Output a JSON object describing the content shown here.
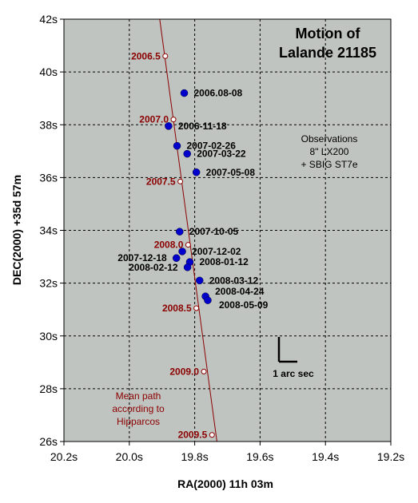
{
  "chart_data": {
    "type": "scatter",
    "title_lines": [
      "Motion of",
      "Lalande 21185"
    ],
    "xlabel": "RA(2000) 11h 03m",
    "ylabel": "DEC(2000) +35d 57m",
    "x_reversed": true,
    "xlim": [
      19.2,
      20.2
    ],
    "ylim": [
      26,
      42
    ],
    "x_ticks": [
      20.2,
      20.0,
      19.8,
      19.6,
      19.4,
      19.2
    ],
    "x_tick_labels": [
      "20.2s",
      "20.0s",
      "19.8s",
      "19.6s",
      "19.4s",
      "19.2s"
    ],
    "y_ticks": [
      26,
      28,
      30,
      32,
      34,
      36,
      38,
      40,
      42
    ],
    "y_tick_labels": [
      "26s",
      "28s",
      "30s",
      "32s",
      "34s",
      "36s",
      "38s",
      "40s",
      "42s"
    ],
    "grid": true,
    "background_color": "#c0c4c0",
    "observation_color": "#0000cc",
    "path_color": "#8b0000",
    "observations": {
      "name": "Observations",
      "points": [
        {
          "label": "2006.08-08",
          "x": 19.832,
          "y": 39.2
        },
        {
          "label": "2006-11-18",
          "x": 19.88,
          "y": 37.95
        },
        {
          "label": "2007-02-26",
          "x": 19.854,
          "y": 37.2
        },
        {
          "label": "2007-03-22",
          "x": 19.823,
          "y": 36.9
        },
        {
          "label": "2007-05-08",
          "x": 19.795,
          "y": 36.2
        },
        {
          "label": "2007-10-05",
          "x": 19.846,
          "y": 33.95
        },
        {
          "label": "2007-12-02",
          "x": 19.838,
          "y": 33.2
        },
        {
          "label": "2007-12-18",
          "x": 19.856,
          "y": 32.95
        },
        {
          "label": "2008-01-12",
          "x": 19.815,
          "y": 32.8
        },
        {
          "label": "2008-02-12",
          "x": 19.822,
          "y": 32.6
        },
        {
          "label": "2008-03-12",
          "x": 19.785,
          "y": 32.1
        },
        {
          "label": "2008-04-24",
          "x": 19.767,
          "y": 31.5
        },
        {
          "label": "2008-05-09",
          "x": 19.76,
          "y": 31.35
        }
      ]
    },
    "hipparcos_path": {
      "name": "Mean path according to Hipparcos",
      "line_start": {
        "x": 19.907,
        "y": 42.2
      },
      "line_end": {
        "x": 19.732,
        "y": 25.8
      },
      "epochs": [
        {
          "label": "2006.5",
          "x": 19.89,
          "y": 40.6
        },
        {
          "label": "2007.0",
          "x": 19.865,
          "y": 38.2
        },
        {
          "label": "2007.5",
          "x": 19.844,
          "y": 35.85
        },
        {
          "label": "2008.0",
          "x": 19.82,
          "y": 33.45
        },
        {
          "label": "2008.5",
          "x": 19.795,
          "y": 31.05
        },
        {
          "label": "2009.0",
          "x": 19.772,
          "y": 28.65
        },
        {
          "label": "2009.5",
          "x": 19.747,
          "y": 26.25
        }
      ]
    },
    "annotations": {
      "observations_note": [
        "Observations",
        "8\" LX200",
        "+ SBIG ST7e"
      ],
      "path_note": [
        "Mean path",
        "according to",
        "Hipparcos"
      ],
      "scale_bar_label": "1 arc sec"
    }
  }
}
